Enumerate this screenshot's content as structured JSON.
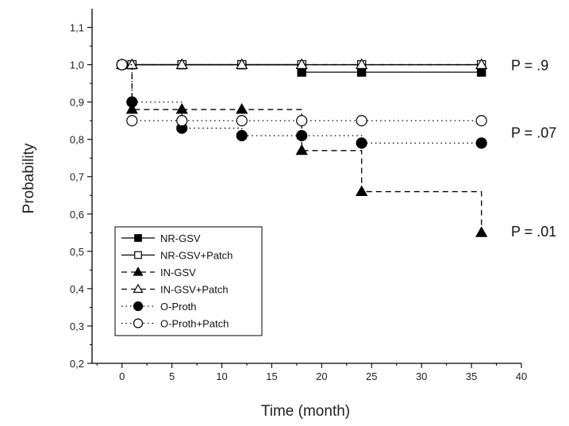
{
  "chart_data": {
    "type": "line",
    "step": true,
    "title": "",
    "xlabel": "Time (month)",
    "ylabel": "Probability",
    "xlim": [
      -3,
      40
    ],
    "ylim": [
      0.2,
      1.15
    ],
    "xticks": [
      0,
      5,
      10,
      15,
      20,
      25,
      30,
      35,
      40
    ],
    "xtick_labels": [
      "0",
      "5",
      "10",
      "15",
      "20",
      "25",
      "30",
      "35",
      "40"
    ],
    "yticks": [
      0.2,
      0.3,
      0.4,
      0.5,
      0.6,
      0.7,
      0.8,
      0.9,
      1.0,
      1.1
    ],
    "ytick_labels": [
      "0,2",
      "0,3",
      "0,4",
      "0,5",
      "0,6",
      "0,7",
      "0,8",
      "0,9",
      "1,0",
      "1,1"
    ],
    "grid": false,
    "legend_position": "bottom-left",
    "series": [
      {
        "name": "NR-GSV",
        "line": "solid",
        "marker": "square",
        "filled": true,
        "x": [
          0,
          1,
          6,
          12,
          18,
          24,
          36
        ],
        "y": [
          1.0,
          1.0,
          1.0,
          1.0,
          0.98,
          0.98,
          0.98
        ],
        "color": "#000000"
      },
      {
        "name": "NR-GSV+Patch",
        "line": "solid",
        "marker": "square",
        "filled": false,
        "x": [
          0,
          1,
          6,
          12,
          18,
          24,
          36
        ],
        "y": [
          1.0,
          1.0,
          1.0,
          1.0,
          1.0,
          1.0,
          1.0
        ],
        "color": "#000000"
      },
      {
        "name": "IN-GSV",
        "line": "dashed",
        "marker": "triangle",
        "filled": true,
        "x": [
          0,
          1,
          6,
          12,
          18,
          24,
          36
        ],
        "y": [
          1.0,
          0.88,
          0.88,
          0.88,
          0.77,
          0.66,
          0.55
        ],
        "color": "#000000"
      },
      {
        "name": "IN-GSV+Patch",
        "line": "dashed",
        "marker": "triangle",
        "filled": false,
        "x": [
          0,
          1,
          6,
          12,
          18,
          24,
          36
        ],
        "y": [
          1.0,
          1.0,
          1.0,
          1.0,
          1.0,
          1.0,
          1.0
        ],
        "color": "#000000"
      },
      {
        "name": "O-Proth",
        "line": "dotted",
        "marker": "circle",
        "filled": true,
        "x": [
          0,
          1,
          6,
          12,
          18,
          24,
          36
        ],
        "y": [
          1.0,
          0.9,
          0.83,
          0.81,
          0.81,
          0.79,
          0.79
        ],
        "color": "#000000"
      },
      {
        "name": "O-Proth+Patch",
        "line": "dotted",
        "marker": "circle",
        "filled": false,
        "x": [
          0,
          1,
          6,
          12,
          18,
          24,
          36
        ],
        "y": [
          1.0,
          0.85,
          0.85,
          0.85,
          0.85,
          0.85,
          0.85
        ],
        "color": "#000000"
      }
    ],
    "annotations": [
      {
        "text": "P = .9",
        "x": 36,
        "y": 1.0
      },
      {
        "text": "P = .07",
        "x": 36,
        "y": 0.82
      },
      {
        "text": "P = .01",
        "x": 36,
        "y": 0.555
      }
    ]
  }
}
